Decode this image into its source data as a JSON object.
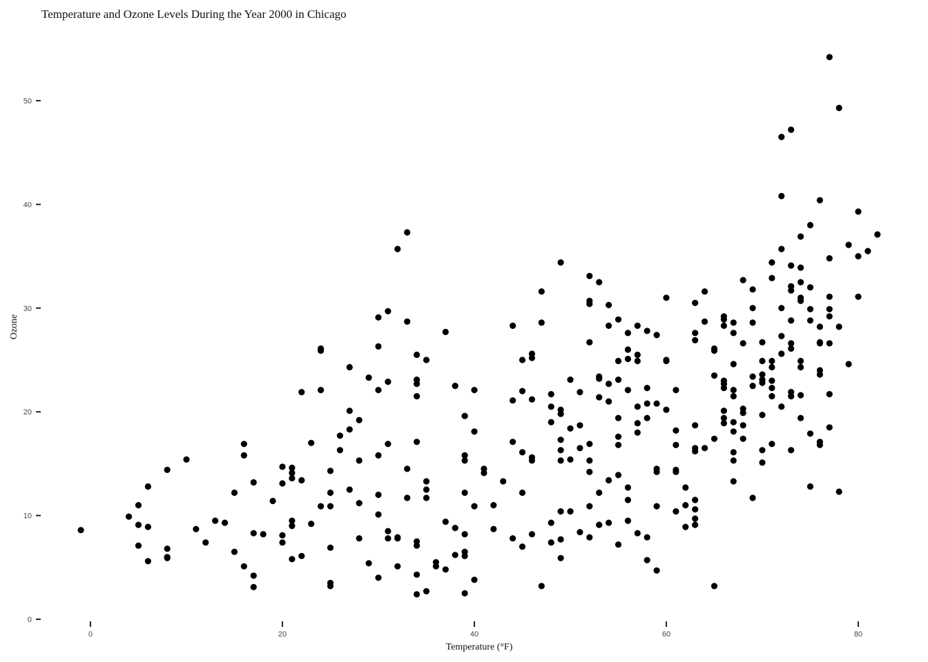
{
  "chart_data": {
    "type": "scatter",
    "title": "Temperature and Ozone Levels During the Year 2000 in Chicago",
    "xlabel": "Temperature (°F)",
    "ylabel": "Ozone",
    "xlim": [
      -2,
      83
    ],
    "ylim": [
      0,
      55
    ],
    "xticks": [
      0,
      20,
      40,
      60,
      80
    ],
    "yticks": [
      0,
      10,
      20,
      30,
      40,
      50
    ],
    "grid": false,
    "legend": "none",
    "point_color": "#000000",
    "points": [
      [
        -1,
        8.6
      ],
      [
        4,
        9.9
      ],
      [
        5,
        11.0
      ],
      [
        5,
        9.1
      ],
      [
        5,
        7.1
      ],
      [
        6,
        12.8
      ],
      [
        6,
        8.9
      ],
      [
        6,
        5.6
      ],
      [
        8,
        14.4
      ],
      [
        8,
        6.8
      ],
      [
        8,
        6.0
      ],
      [
        8,
        5.9
      ],
      [
        10,
        15.4
      ],
      [
        11,
        8.7
      ],
      [
        12,
        7.4
      ],
      [
        13,
        9.5
      ],
      [
        14,
        9.3
      ],
      [
        15,
        12.2
      ],
      [
        15,
        6.5
      ],
      [
        16,
        16.9
      ],
      [
        16,
        15.8
      ],
      [
        16,
        5.1
      ],
      [
        17,
        13.2
      ],
      [
        17,
        8.3
      ],
      [
        17,
        4.2
      ],
      [
        17,
        3.1
      ],
      [
        18,
        8.2
      ],
      [
        19,
        11.4
      ],
      [
        20,
        14.7
      ],
      [
        20,
        13.1
      ],
      [
        20,
        8.1
      ],
      [
        20,
        7.4
      ],
      [
        21,
        14.6
      ],
      [
        21,
        14.1
      ],
      [
        21,
        13.6
      ],
      [
        21,
        9.5
      ],
      [
        21,
        9.0
      ],
      [
        21,
        5.8
      ],
      [
        22,
        21.9
      ],
      [
        22,
        13.4
      ],
      [
        22,
        6.1
      ],
      [
        23,
        17.0
      ],
      [
        23,
        9.2
      ],
      [
        24,
        26.1
      ],
      [
        24,
        25.9
      ],
      [
        24,
        22.1
      ],
      [
        24,
        10.9
      ],
      [
        25,
        14.3
      ],
      [
        25,
        12.2
      ],
      [
        25,
        10.9
      ],
      [
        25,
        6.9
      ],
      [
        25,
        3.5
      ],
      [
        25,
        3.2
      ],
      [
        26,
        17.7
      ],
      [
        26,
        16.3
      ],
      [
        27,
        24.3
      ],
      [
        27,
        20.1
      ],
      [
        27,
        18.3
      ],
      [
        27,
        12.5
      ],
      [
        28,
        19.2
      ],
      [
        28,
        15.3
      ],
      [
        28,
        11.2
      ],
      [
        28,
        7.8
      ],
      [
        29,
        23.3
      ],
      [
        29,
        5.4
      ],
      [
        30,
        29.1
      ],
      [
        30,
        26.3
      ],
      [
        30,
        22.1
      ],
      [
        30,
        15.8
      ],
      [
        30,
        12.0
      ],
      [
        30,
        10.1
      ],
      [
        30,
        4.0
      ],
      [
        31,
        29.7
      ],
      [
        31,
        22.9
      ],
      [
        31,
        16.9
      ],
      [
        31,
        8.5
      ],
      [
        31,
        7.8
      ],
      [
        32,
        35.7
      ],
      [
        32,
        7.9
      ],
      [
        32,
        7.8
      ],
      [
        32,
        5.1
      ],
      [
        33,
        37.3
      ],
      [
        33,
        28.7
      ],
      [
        33,
        14.5
      ],
      [
        33,
        11.7
      ],
      [
        34,
        25.5
      ],
      [
        34,
        23.1
      ],
      [
        34,
        22.7
      ],
      [
        34,
        21.5
      ],
      [
        34,
        17.1
      ],
      [
        34,
        7.5
      ],
      [
        34,
        7.1
      ],
      [
        34,
        4.3
      ],
      [
        34,
        2.4
      ],
      [
        35,
        25.0
      ],
      [
        35,
        13.3
      ],
      [
        35,
        12.5
      ],
      [
        35,
        11.7
      ],
      [
        35,
        2.7
      ],
      [
        36,
        5.5
      ],
      [
        36,
        5.1
      ],
      [
        37,
        27.7
      ],
      [
        37,
        9.4
      ],
      [
        37,
        4.8
      ],
      [
        38,
        22.5
      ],
      [
        38,
        8.8
      ],
      [
        38,
        6.2
      ],
      [
        39,
        19.6
      ],
      [
        39,
        15.8
      ],
      [
        39,
        15.3
      ],
      [
        39,
        12.2
      ],
      [
        39,
        8.2
      ],
      [
        39,
        6.5
      ],
      [
        39,
        6.1
      ],
      [
        39,
        2.5
      ],
      [
        40,
        22.1
      ],
      [
        40,
        18.1
      ],
      [
        40,
        10.9
      ],
      [
        40,
        3.8
      ],
      [
        41,
        14.5
      ],
      [
        41,
        14.1
      ],
      [
        42,
        11.0
      ],
      [
        42,
        8.7
      ],
      [
        43,
        13.3
      ],
      [
        44,
        28.3
      ],
      [
        44,
        21.1
      ],
      [
        44,
        17.1
      ],
      [
        44,
        7.8
      ],
      [
        45,
        25.0
      ],
      [
        45,
        22.0
      ],
      [
        45,
        16.1
      ],
      [
        45,
        12.2
      ],
      [
        45,
        7.0
      ],
      [
        46,
        25.6
      ],
      [
        46,
        25.2
      ],
      [
        46,
        21.2
      ],
      [
        46,
        15.6
      ],
      [
        46,
        15.3
      ],
      [
        46,
        8.2
      ],
      [
        47,
        31.6
      ],
      [
        47,
        28.6
      ],
      [
        47,
        3.2
      ],
      [
        48,
        21.7
      ],
      [
        48,
        20.5
      ],
      [
        48,
        19.0
      ],
      [
        48,
        9.3
      ],
      [
        48,
        7.4
      ],
      [
        49,
        34.4
      ],
      [
        49,
        20.2
      ],
      [
        49,
        19.8
      ],
      [
        49,
        17.3
      ],
      [
        49,
        16.3
      ],
      [
        49,
        15.3
      ],
      [
        49,
        10.4
      ],
      [
        49,
        7.7
      ],
      [
        49,
        5.9
      ],
      [
        50,
        23.1
      ],
      [
        50,
        18.4
      ],
      [
        50,
        15.4
      ],
      [
        50,
        10.4
      ],
      [
        51,
        21.9
      ],
      [
        51,
        18.7
      ],
      [
        51,
        16.5
      ],
      [
        51,
        8.4
      ],
      [
        52,
        33.1
      ],
      [
        52,
        30.7
      ],
      [
        52,
        30.4
      ],
      [
        52,
        26.7
      ],
      [
        52,
        16.9
      ],
      [
        52,
        15.3
      ],
      [
        52,
        14.2
      ],
      [
        52,
        10.9
      ],
      [
        52,
        7.9
      ],
      [
        53,
        32.5
      ],
      [
        53,
        23.4
      ],
      [
        53,
        23.2
      ],
      [
        53,
        21.4
      ],
      [
        53,
        12.2
      ],
      [
        53,
        9.1
      ],
      [
        54,
        30.3
      ],
      [
        54,
        28.3
      ],
      [
        54,
        22.7
      ],
      [
        54,
        21.0
      ],
      [
        54,
        13.4
      ],
      [
        54,
        9.3
      ],
      [
        55,
        28.9
      ],
      [
        55,
        24.9
      ],
      [
        55,
        23.1
      ],
      [
        55,
        19.4
      ],
      [
        55,
        17.6
      ],
      [
        55,
        16.8
      ],
      [
        55,
        13.9
      ],
      [
        55,
        7.2
      ],
      [
        56,
        27.6
      ],
      [
        56,
        26.0
      ],
      [
        56,
        25.1
      ],
      [
        56,
        22.1
      ],
      [
        56,
        12.7
      ],
      [
        56,
        11.5
      ],
      [
        56,
        9.5
      ],
      [
        57,
        28.3
      ],
      [
        57,
        25.5
      ],
      [
        57,
        24.9
      ],
      [
        57,
        20.5
      ],
      [
        57,
        18.9
      ],
      [
        57,
        18.0
      ],
      [
        57,
        8.3
      ],
      [
        58,
        27.8
      ],
      [
        58,
        22.3
      ],
      [
        58,
        20.8
      ],
      [
        58,
        19.4
      ],
      [
        58,
        7.9
      ],
      [
        58,
        5.7
      ],
      [
        59,
        27.4
      ],
      [
        59,
        20.8
      ],
      [
        59,
        14.5
      ],
      [
        59,
        14.2
      ],
      [
        59,
        10.9
      ],
      [
        59,
        4.7
      ],
      [
        60,
        31.0
      ],
      [
        60,
        25.0
      ],
      [
        60,
        24.9
      ],
      [
        60,
        20.2
      ],
      [
        61,
        22.1
      ],
      [
        61,
        18.2
      ],
      [
        61,
        16.8
      ],
      [
        61,
        14.4
      ],
      [
        61,
        14.2
      ],
      [
        61,
        10.4
      ],
      [
        62,
        12.7
      ],
      [
        62,
        11.0
      ],
      [
        62,
        8.9
      ],
      [
        63,
        30.5
      ],
      [
        63,
        27.6
      ],
      [
        63,
        26.9
      ],
      [
        63,
        18.7
      ],
      [
        63,
        16.5
      ],
      [
        63,
        16.2
      ],
      [
        63,
        11.5
      ],
      [
        63,
        10.6
      ],
      [
        63,
        9.7
      ],
      [
        63,
        9.1
      ],
      [
        64,
        31.6
      ],
      [
        64,
        28.7
      ],
      [
        64,
        16.5
      ],
      [
        65,
        26.1
      ],
      [
        65,
        25.9
      ],
      [
        65,
        23.5
      ],
      [
        65,
        17.4
      ],
      [
        65,
        3.2
      ],
      [
        66,
        29.2
      ],
      [
        66,
        28.9
      ],
      [
        66,
        28.3
      ],
      [
        66,
        23.0
      ],
      [
        66,
        22.7
      ],
      [
        66,
        22.3
      ],
      [
        66,
        20.1
      ],
      [
        66,
        19.4
      ],
      [
        66,
        18.9
      ],
      [
        67,
        28.6
      ],
      [
        67,
        27.6
      ],
      [
        67,
        24.6
      ],
      [
        67,
        22.1
      ],
      [
        67,
        21.5
      ],
      [
        67,
        19.0
      ],
      [
        67,
        18.1
      ],
      [
        67,
        16.1
      ],
      [
        67,
        15.3
      ],
      [
        67,
        13.3
      ],
      [
        68,
        32.7
      ],
      [
        68,
        26.6
      ],
      [
        68,
        20.3
      ],
      [
        68,
        19.9
      ],
      [
        68,
        18.7
      ],
      [
        68,
        17.4
      ],
      [
        69,
        31.8
      ],
      [
        69,
        30.0
      ],
      [
        69,
        28.6
      ],
      [
        69,
        23.4
      ],
      [
        69,
        22.5
      ],
      [
        69,
        11.7
      ],
      [
        70,
        26.7
      ],
      [
        70,
        24.9
      ],
      [
        70,
        23.6
      ],
      [
        70,
        23.1
      ],
      [
        70,
        22.8
      ],
      [
        70,
        19.7
      ],
      [
        70,
        16.3
      ],
      [
        70,
        15.1
      ],
      [
        71,
        34.4
      ],
      [
        71,
        32.9
      ],
      [
        71,
        24.9
      ],
      [
        71,
        24.3
      ],
      [
        71,
        23.0
      ],
      [
        71,
        22.3
      ],
      [
        71,
        21.5
      ],
      [
        71,
        16.9
      ],
      [
        72,
        46.5
      ],
      [
        72,
        40.8
      ],
      [
        72,
        35.7
      ],
      [
        72,
        30.0
      ],
      [
        72,
        27.3
      ],
      [
        72,
        25.6
      ],
      [
        72,
        20.5
      ],
      [
        73,
        47.2
      ],
      [
        73,
        34.1
      ],
      [
        73,
        32.1
      ],
      [
        73,
        31.7
      ],
      [
        73,
        28.8
      ],
      [
        73,
        26.6
      ],
      [
        73,
        26.1
      ],
      [
        73,
        21.9
      ],
      [
        73,
        21.5
      ],
      [
        73,
        16.3
      ],
      [
        74,
        36.9
      ],
      [
        74,
        33.9
      ],
      [
        74,
        32.5
      ],
      [
        74,
        31.0
      ],
      [
        74,
        30.7
      ],
      [
        74,
        24.9
      ],
      [
        74,
        24.3
      ],
      [
        74,
        21.6
      ],
      [
        74,
        19.4
      ],
      [
        75,
        38.0
      ],
      [
        75,
        32.0
      ],
      [
        75,
        29.9
      ],
      [
        75,
        28.8
      ],
      [
        75,
        17.9
      ],
      [
        75,
        12.8
      ],
      [
        76,
        40.4
      ],
      [
        76,
        28.2
      ],
      [
        76,
        26.7
      ],
      [
        76,
        26.6
      ],
      [
        76,
        24.0
      ],
      [
        76,
        23.6
      ],
      [
        76,
        17.1
      ],
      [
        76,
        16.8
      ],
      [
        77,
        54.2
      ],
      [
        77,
        34.8
      ],
      [
        77,
        31.1
      ],
      [
        77,
        29.9
      ],
      [
        77,
        29.2
      ],
      [
        77,
        26.6
      ],
      [
        77,
        21.7
      ],
      [
        77,
        18.5
      ],
      [
        78,
        49.3
      ],
      [
        78,
        28.2
      ],
      [
        78,
        12.3
      ],
      [
        79,
        36.1
      ],
      [
        79,
        24.6
      ],
      [
        80,
        39.3
      ],
      [
        80,
        35.0
      ],
      [
        80,
        31.1
      ],
      [
        81,
        35.5
      ],
      [
        82,
        37.1
      ]
    ]
  }
}
